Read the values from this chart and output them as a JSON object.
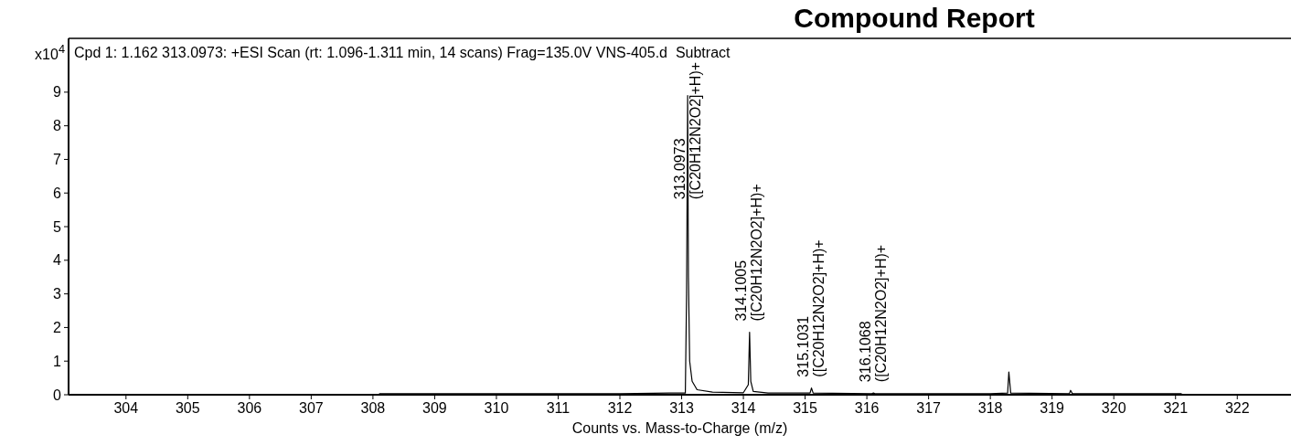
{
  "chart_data": {
    "type": "line",
    "title": "Compound Report",
    "subtitle": "Cpd 1: 1.162 313.0973: +ESI Scan (rt: 1.096-1.311 min, 14 scans) Frag=135.0V VNS-405.d  Subtract",
    "xlabel": "Counts vs. Mass-to-Charge (m/z)",
    "ylabel": "x10$^{4}$",
    "series": [
      {
        "color": "#000000",
        "x": [
          308.1,
          309,
          310,
          311,
          312,
          312.8,
          313.06,
          313.08,
          313.0973,
          313.11,
          313.13,
          313.17,
          313.25,
          313.5,
          314.0,
          314.08,
          314.1005,
          314.12,
          314.16,
          314.4,
          315.08,
          315.1031,
          315.13,
          316.08,
          316.1068,
          316.13,
          318.0,
          318.28,
          318.3,
          318.33,
          319.28,
          319.3,
          319.33,
          320,
          321.1
        ],
        "values": [
          0.03,
          0.03,
          0.03,
          0.03,
          0.03,
          0.05,
          0.05,
          3.0,
          8.9,
          3.5,
          1.0,
          0.4,
          0.15,
          0.08,
          0.06,
          0.3,
          1.86,
          0.4,
          0.1,
          0.05,
          0.05,
          0.2,
          0.05,
          0.03,
          0.05,
          0.03,
          0.03,
          0.05,
          0.68,
          0.05,
          0.03,
          0.13,
          0.03,
          0.03,
          0.03
        ]
      }
    ],
    "annotations": [
      {
        "text": "313.0973\n([C20H12N2O2]+H)+",
        "x": 313.0973,
        "y": 8.9
      },
      {
        "text": "314.1005\n([C20H12N2O2]+H)+",
        "x": 314.1005,
        "y": 1.86
      },
      {
        "text": "315.1031\n([C20H12N2O2]+H)+",
        "x": 315.1031,
        "y": 0.2
      },
      {
        "text": "316.1068\n([C20H12N2O2]+H)+",
        "x": 316.1068,
        "y": 0.05
      }
    ],
    "xlim": [
      303.07,
      322.87
    ],
    "ylim": [
      0,
      10.6
    ],
    "xticks": [
      304,
      305,
      306,
      307,
      308,
      309,
      310,
      311,
      312,
      313,
      314,
      315,
      316,
      317,
      318,
      319,
      320,
      321,
      322
    ],
    "yticks": [
      0,
      1,
      2,
      3,
      4,
      5,
      6,
      7,
      8,
      9
    ],
    "grid": false,
    "marker": "none",
    "line_style": "solid"
  }
}
